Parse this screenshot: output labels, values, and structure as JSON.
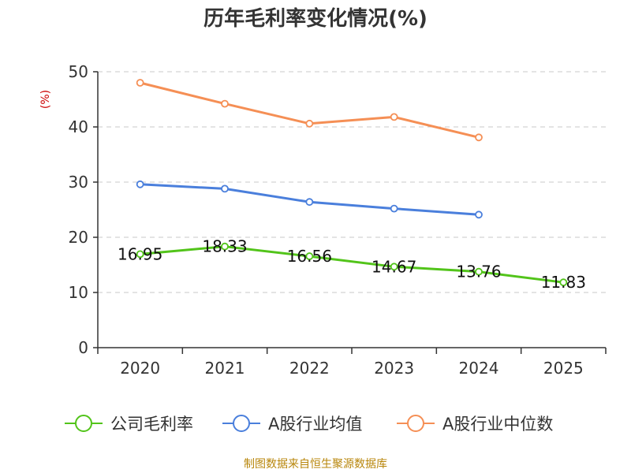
{
  "chart_data": {
    "type": "line",
    "title": "历年毛利率变化情况(%)",
    "ylabel": "(%)",
    "xlabel": "",
    "categories": [
      "2020",
      "2021",
      "2022",
      "2023",
      "2024",
      "2025"
    ],
    "ylim": [
      0,
      50
    ],
    "yticks": [
      0,
      10,
      20,
      30,
      40,
      50
    ],
    "grid": true,
    "legend_position": "bottom",
    "series": [
      {
        "name": "公司毛利率",
        "color": "#52c41a",
        "values": [
          16.95,
          18.33,
          16.56,
          14.67,
          13.76,
          11.83
        ],
        "labels": [
          "16.95",
          "18.33",
          "16.56",
          "14.67",
          "13.76",
          "11.83"
        ]
      },
      {
        "name": "A股行业均值",
        "color": "#4a7fdc",
        "values": [
          29.6,
          28.8,
          26.4,
          25.2,
          24.1,
          null
        ]
      },
      {
        "name": "A股行业中位数",
        "color": "#f58f55",
        "values": [
          48.0,
          44.2,
          40.6,
          41.8,
          38.1,
          null
        ]
      }
    ]
  },
  "footer": {
    "source": "制图数据来自恒生聚源数据库"
  }
}
